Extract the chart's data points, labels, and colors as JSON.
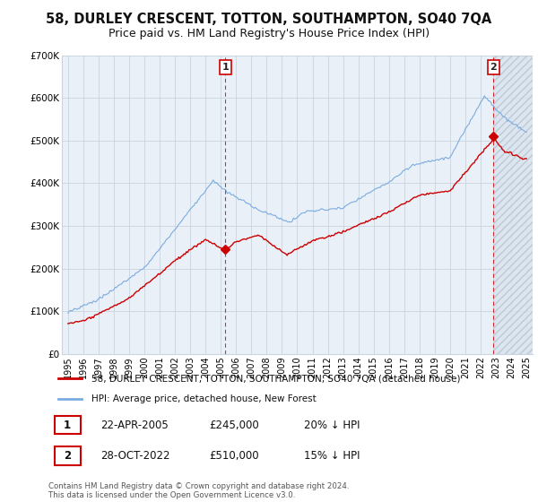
{
  "title": "58, DURLEY CRESCENT, TOTTON, SOUTHAMPTON, SO40 7QA",
  "subtitle": "Price paid vs. HM Land Registry's House Price Index (HPI)",
  "ylim": [
    0,
    700000
  ],
  "yticks": [
    0,
    100000,
    200000,
    300000,
    400000,
    500000,
    600000,
    700000
  ],
  "ytick_labels": [
    "£0",
    "£100K",
    "£200K",
    "£300K",
    "£400K",
    "£500K",
    "£600K",
    "£700K"
  ],
  "xlim_start": 1994.6,
  "xlim_end": 2025.4,
  "background_color": "#ffffff",
  "plot_bg_color": "#eaf0f8",
  "grid_color": "#c8d4e0",
  "hatch_color": "#c0c8d4",
  "sale1_year": 2005.3,
  "sale1_price": 245000,
  "sale2_year": 2022.83,
  "sale2_price": 510000,
  "red_color": "#cc0000",
  "blue_color": "#7aace0",
  "box_edge_color": "#cc0000",
  "legend_line1": "58, DURLEY CRESCENT, TOTTON, SOUTHAMPTON, SO40 7QA (detached house)",
  "legend_line2": "HPI: Average price, detached house, New Forest",
  "footer": "Contains HM Land Registry data © Crown copyright and database right 2024.\nThis data is licensed under the Open Government Licence v3.0.",
  "title_fontsize": 10.5,
  "subtitle_fontsize": 9
}
